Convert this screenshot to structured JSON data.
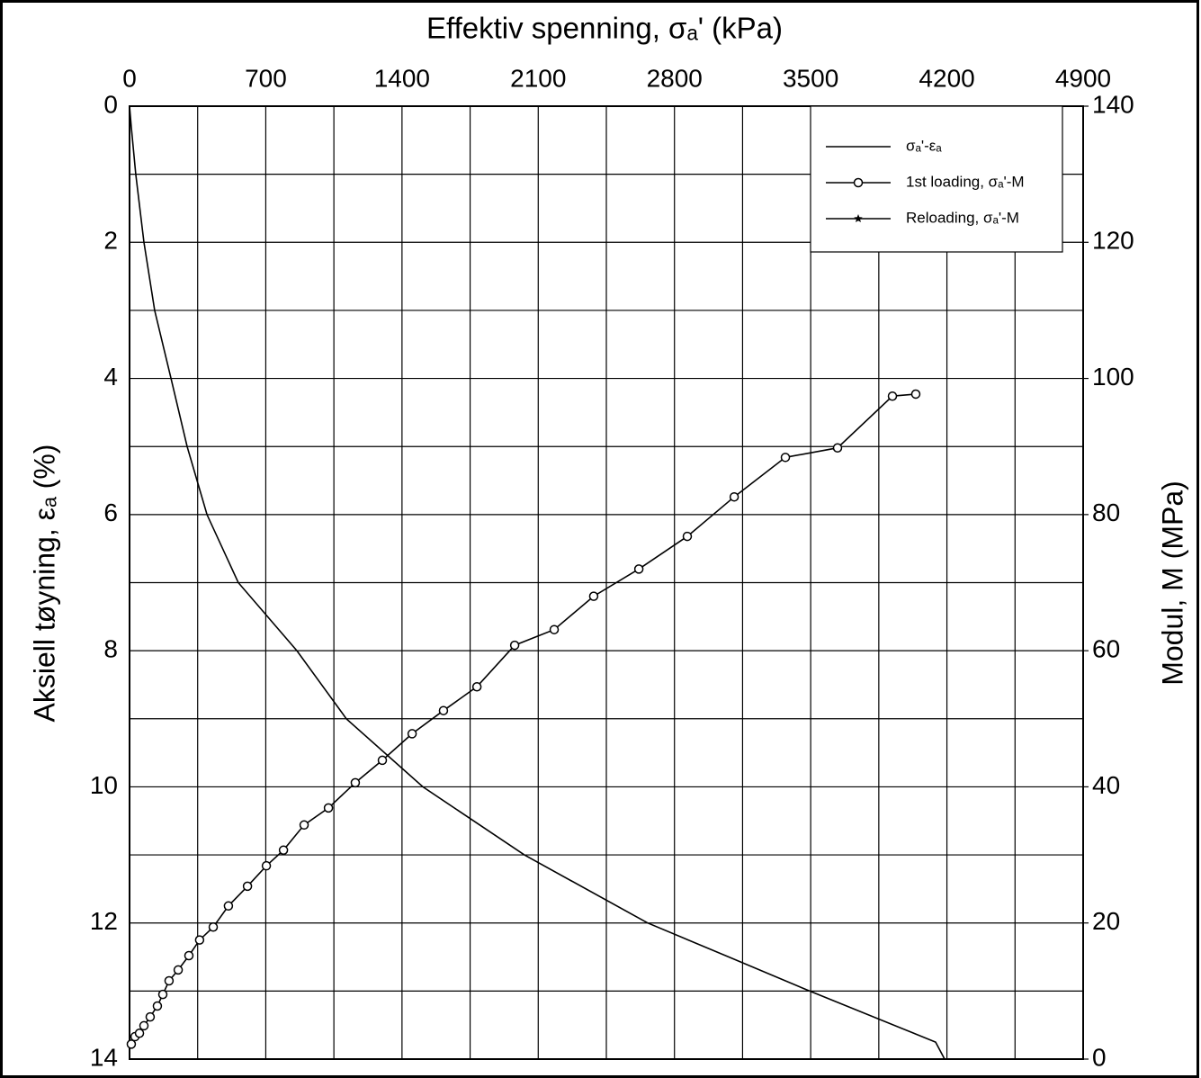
{
  "chart_data": {
    "type": "line",
    "title": "Effektiv spenning, σₐ'  (kPa)",
    "y_label": "Aksiell tøyning, εₐ  (%)",
    "y2_label": "Modul, M  (MPa)",
    "xlim": [
      0,
      4900
    ],
    "xticks": [
      0,
      700,
      1400,
      2100,
      2800,
      3500,
      4200,
      4900
    ],
    "x_minor_ticks": [
      350,
      1050,
      1750,
      2450,
      3150,
      3850,
      4550
    ],
    "ylim": [
      0,
      14
    ],
    "y_inverted": true,
    "yticks": [
      0,
      2,
      4,
      6,
      8,
      10,
      12,
      14
    ],
    "y_minor_ticks": [
      1,
      3,
      5,
      7,
      9,
      11,
      13
    ],
    "y2lim": [
      0,
      140
    ],
    "y2ticks": [
      0,
      20,
      40,
      60,
      80,
      100,
      120,
      140
    ],
    "grid": true,
    "legend": "upper right",
    "series": [
      {
        "name": "σₐ'-εₐ",
        "color": "#000000",
        "marker": "none",
        "x": [
          0,
          9,
          32,
          74,
          129,
          213,
          296,
          398,
          559,
          860,
          1114,
          1507,
          2029,
          2662,
          3079,
          3495,
          4142,
          4188
        ],
        "values": [
          0,
          0.3,
          1,
          2,
          3,
          4,
          5,
          6,
          7,
          8,
          9,
          10,
          11,
          12,
          12.5,
          13,
          13.75,
          14
        ]
      },
      {
        "name": "1st loading, σₐ'-M",
        "color": "#000000",
        "marker": "circle",
        "axis": "y2",
        "x": [
          9,
          28,
          51,
          74,
          106,
          143,
          171,
          203,
          250,
          305,
          360,
          430,
          508,
          606,
          703,
          791,
          897,
          1022,
          1160,
          1299,
          1452,
          1613,
          1785,
          1979,
          2182,
          2385,
          2617,
          2866,
          3107,
          3370,
          3638,
          3920,
          4040
        ],
        "values": [
          2.2,
          3.3,
          3.8,
          4.9,
          6.2,
          7.8,
          9.5,
          11.5,
          13.1,
          15.2,
          17.5,
          19.4,
          22.5,
          25.4,
          28.4,
          30.7,
          34.4,
          36.9,
          40.6,
          43.9,
          47.8,
          51.2,
          54.7,
          60.8,
          63.1,
          68.0,
          72.0,
          76.8,
          82.6,
          88.4,
          89.8,
          97.4,
          97.7
        ]
      },
      {
        "name": "Reloading, σₐ'-M",
        "color": "#000000",
        "marker": "star",
        "axis": "y2",
        "x": [],
        "values": []
      }
    ]
  }
}
